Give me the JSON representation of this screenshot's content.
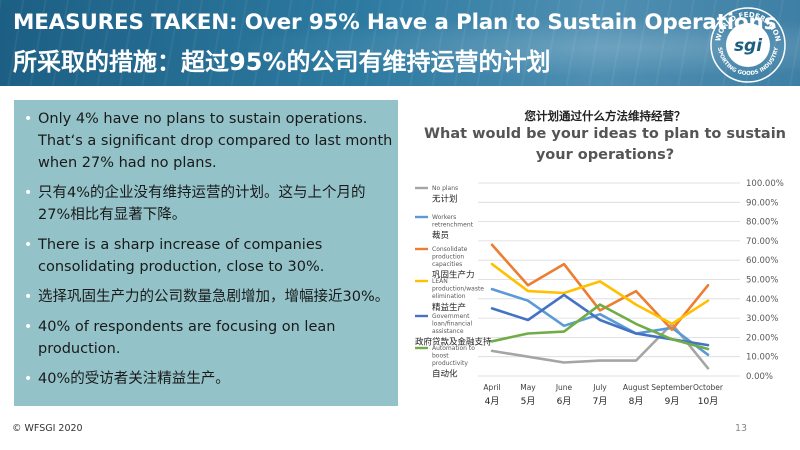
{
  "slide": {
    "title_en": "MEASURES TAKEN: Over 95% Have a Plan to Sustain Operations",
    "title_zh": "所采取的措施：超过95%的公司有维持运营的计划",
    "logo_text_top": "WORLD FEDERATION",
    "logo_text_bottom": "SPORTING GOODS INDUSTRY",
    "logo_mark": "sgi",
    "footer": "© WFSGI 2020",
    "page_number": "13"
  },
  "bullets": [
    "Only 4% have no plans to sustain operations. That‘s a significant drop compared to last month when 27% had no plans.",
    "只有4%的企业没有维持运营的计划。这与上个月的27%相比有显著下降。",
    "There is a sharp increase of companies consolidating production, close to 30%.",
    "选择巩固生产力的公司数量急剧增加，增幅接近30%。",
    "40% of respondents are focusing on lean production.",
    "40%的受访者关注精益生产。"
  ],
  "colors": {
    "header_bg": "#2d7aa1",
    "bullet_box_bg": "#93c3c9"
  },
  "chart_data": {
    "type": "line",
    "title": "What would be your ideas to plan to sustain your operations?",
    "title_zh": "您计划通过什么方法维持经营？",
    "x": [
      "April",
      "May",
      "June",
      "July",
      "August",
      "September",
      "October"
    ],
    "x_zh": [
      "4月",
      "5月",
      "6月",
      "7月",
      "8月",
      "9月",
      "10月"
    ],
    "yticks": [
      "0.00%",
      "10.00%",
      "20.00%",
      "30.00%",
      "40.00%",
      "50.00%",
      "60.00%",
      "70.00%",
      "80.00%",
      "90.00%",
      "100.00%"
    ],
    "ylim": [
      0,
      100
    ],
    "grid": true,
    "legend_position": "left",
    "series": [
      {
        "name": "No plans",
        "name_zh": "无计划",
        "color": "#a5a5a5",
        "values": [
          13,
          10,
          7,
          8,
          8,
          27,
          4
        ]
      },
      {
        "name": "Workers retrenchment",
        "name_zh": "裁员",
        "color": "#5b9bd5",
        "values": [
          45,
          39,
          26,
          32,
          22,
          25,
          11
        ]
      },
      {
        "name": "Consolidate production capacities",
        "name_zh": "巩固生产力",
        "color": "#ed7d31",
        "values": [
          68,
          47,
          58,
          34,
          44,
          24,
          47
        ]
      },
      {
        "name": "LEAN production/waste elimination",
        "name_zh": "",
        "color": "#ffc000",
        "values": [
          58,
          44,
          43,
          49,
          37,
          27,
          39
        ]
      },
      {
        "name": "Government loan/financial assistance",
        "name_zh": "政府贷款及金融支持",
        "color": "#4472c4",
        "values": [
          35,
          29,
          42,
          29,
          22,
          19,
          16
        ]
      },
      {
        "name": "Automation to boost productivity",
        "name_zh": "自动化",
        "color": "#70ad47",
        "values": [
          18,
          22,
          23,
          37,
          27,
          19,
          14
        ]
      }
    ],
    "extra_label_zh": "精益生产"
  }
}
